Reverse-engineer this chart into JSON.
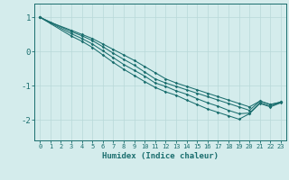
{
  "xlabel": "Humidex (Indice chaleur)",
  "bg_color": "#d4ecec",
  "grid_color": "#b8d8d8",
  "line_color": "#1a6e6e",
  "xlim": [
    -0.5,
    23.5
  ],
  "ylim": [
    -2.6,
    1.4
  ],
  "yticks": [
    -2,
    -1,
    0,
    1
  ],
  "xticks": [
    0,
    1,
    2,
    3,
    4,
    5,
    6,
    7,
    8,
    9,
    10,
    11,
    12,
    13,
    14,
    15,
    16,
    17,
    18,
    19,
    20,
    21,
    22,
    23
  ],
  "line1_x": [
    0,
    1,
    3,
    4,
    5,
    6,
    7,
    8,
    9,
    10,
    11,
    12,
    13,
    14,
    15,
    16,
    17,
    18,
    19,
    20,
    21,
    22,
    23
  ],
  "line1_y": [
    1.0,
    0.85,
    0.62,
    0.5,
    0.38,
    0.22,
    0.06,
    -0.1,
    -0.26,
    -0.44,
    -0.62,
    -0.8,
    -0.92,
    -1.02,
    -1.12,
    -1.22,
    -1.32,
    -1.42,
    -1.52,
    -1.62,
    -1.45,
    -1.55,
    -1.48
  ],
  "line2_x": [
    0,
    3,
    4,
    5,
    6,
    7,
    8,
    9,
    10,
    11,
    12,
    13,
    14,
    15,
    16,
    17,
    18,
    19,
    20,
    21,
    22,
    23
  ],
  "line2_y": [
    1.0,
    0.58,
    0.46,
    0.32,
    0.14,
    -0.05,
    -0.23,
    -0.4,
    -0.6,
    -0.8,
    -0.92,
    -1.02,
    -1.12,
    -1.22,
    -1.32,
    -1.42,
    -1.52,
    -1.62,
    -1.72,
    -1.45,
    -1.55,
    -1.48
  ],
  "line3_x": [
    0,
    3,
    4,
    5,
    6,
    7,
    8,
    9,
    10,
    11,
    12,
    13,
    14,
    15,
    16,
    17,
    18,
    19,
    20,
    21,
    22,
    23
  ],
  "line3_y": [
    1.0,
    0.52,
    0.38,
    0.22,
    0.02,
    -0.18,
    -0.38,
    -0.55,
    -0.72,
    -0.92,
    -1.02,
    -1.15,
    -1.25,
    -1.38,
    -1.5,
    -1.6,
    -1.72,
    -1.82,
    -1.8,
    -1.5,
    -1.6,
    -1.48
  ],
  "line4_x": [
    0,
    3,
    4,
    5,
    6,
    7,
    8,
    9,
    10,
    11,
    12,
    13,
    14,
    15,
    16,
    17,
    18,
    19,
    20,
    21,
    22,
    23
  ],
  "line4_y": [
    1.0,
    0.45,
    0.3,
    0.12,
    -0.1,
    -0.32,
    -0.52,
    -0.7,
    -0.88,
    -1.05,
    -1.18,
    -1.28,
    -1.42,
    -1.55,
    -1.68,
    -1.78,
    -1.88,
    -1.98,
    -1.82,
    -1.52,
    -1.62,
    -1.5
  ]
}
